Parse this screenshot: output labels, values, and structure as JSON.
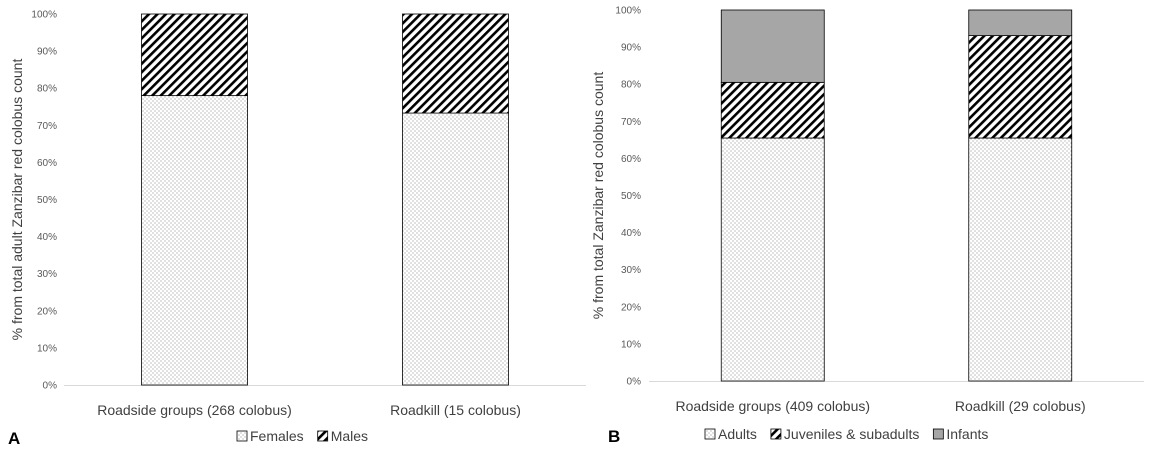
{
  "chart_data": [
    {
      "type": "bar",
      "stacked": true,
      "percent": true,
      "panel_label": "A",
      "ylabel": "% from total adult Zanzibar red colobus count",
      "ylim": [
        0,
        100
      ],
      "yticks": [
        "0%",
        "10%",
        "20%",
        "30%",
        "40%",
        "50%",
        "60%",
        "70%",
        "80%",
        "90%",
        "100%"
      ],
      "categories": [
        "Roadside groups (268 colobus)",
        "Roadkill (15 colobus)"
      ],
      "series": [
        {
          "name": "Females",
          "values": [
            78,
            73.3
          ],
          "pattern": "dots"
        },
        {
          "name": "Males",
          "values": [
            22,
            26.7
          ],
          "pattern": "hatch"
        }
      ],
      "legend_position": "bottom",
      "grid": false
    },
    {
      "type": "bar",
      "stacked": true,
      "percent": true,
      "panel_label": "B",
      "ylabel": "% from total Zanzibar red colobus  count",
      "ylim": [
        0,
        100
      ],
      "yticks": [
        "0%",
        "10%",
        "20%",
        "30%",
        "40%",
        "50%",
        "60%",
        "70%",
        "80%",
        "90%",
        "100%"
      ],
      "categories": [
        "Roadside groups (409 colobus)",
        "Roadkill (29 colobus)"
      ],
      "series": [
        {
          "name": "Adults",
          "values": [
            65.5,
            65.5
          ],
          "pattern": "dots"
        },
        {
          "name": "Juveniles & subadults",
          "values": [
            15,
            27.6
          ],
          "pattern": "hatch"
        },
        {
          "name": "Infants",
          "values": [
            19.5,
            6.9
          ],
          "pattern": "solid",
          "color": "#a6a6a6"
        }
      ],
      "legend_position": "bottom",
      "grid": false
    }
  ]
}
